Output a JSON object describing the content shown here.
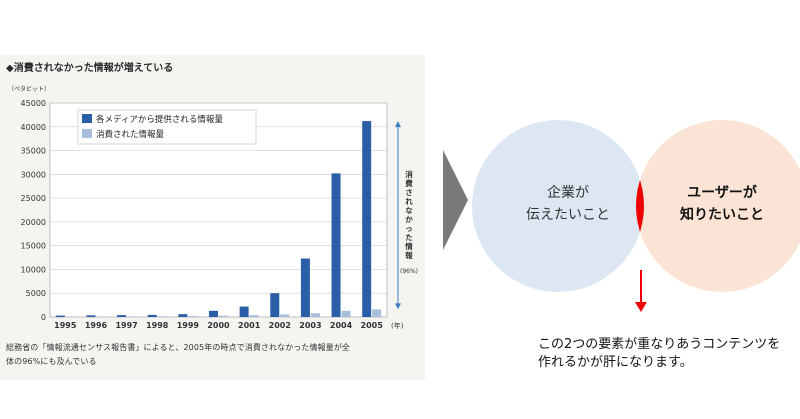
{
  "chart_heading": "◆消費されなかった情報が増えている",
  "chart_data": {
    "type": "bar",
    "categories": [
      "1995",
      "1996",
      "1997",
      "1998",
      "1999",
      "2000",
      "2001",
      "2002",
      "2003",
      "2004",
      "2005"
    ],
    "x_unit": "(年)",
    "y_unit_label": "（ペタビット）",
    "ylim": [
      0,
      45000
    ],
    "yticks": [
      0,
      5000,
      10000,
      15000,
      20000,
      25000,
      30000,
      35000,
      40000,
      45000
    ],
    "grid": true,
    "legend_placement": "top-left",
    "series": [
      {
        "name": "各メディアから提供される情報量",
        "color": "#2a5fa8",
        "values": [
          300,
          350,
          400,
          450,
          600,
          1300,
          2200,
          5000,
          12300,
          30200,
          41200
        ]
      },
      {
        "name": "消費された情報量",
        "color": "#a8bfdc",
        "values": [
          80,
          100,
          120,
          150,
          200,
          280,
          400,
          550,
          800,
          1300,
          1600
        ]
      }
    ],
    "annotation": {
      "text": "消費されなかった情報",
      "sub": "(96%)"
    }
  },
  "caption": {
    "line1": "総務省の「情報流通センサス報告書」によると、2005年の時点で消費されなかった情報量が全",
    "line2": "体の96%にも及んでいる"
  },
  "venn": {
    "left_line1": "企業が",
    "left_line2": "伝えたいこと",
    "right_line1": "ユーザーが",
    "right_line2": "知りたいこと",
    "left_color": "#dde7f3",
    "right_color": "#fbe4d6",
    "intersection_color": "#ee0000"
  },
  "conclusion": {
    "line1": "この2つの要素が重なりあうコンテンツを",
    "line2": "作れるかが肝になります。"
  }
}
